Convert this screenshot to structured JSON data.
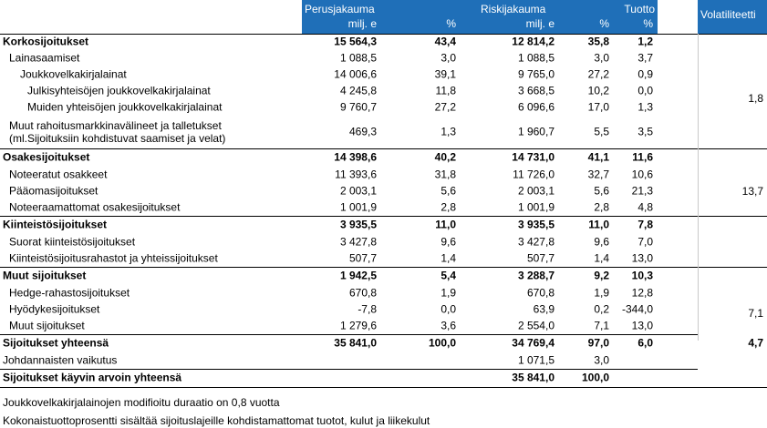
{
  "header": {
    "perus_title": "Perusjakauma",
    "perus_unit": "milj. e",
    "perus_pct": "%",
    "riski_title": "Riskijakauma",
    "riski_unit": "milj. e",
    "riski_pct": "%",
    "tuotto_title": "Tuotto",
    "tuotto_pct": "%",
    "volatiliteetti": "Volatiliteetti"
  },
  "rows": [
    {
      "label": "Korkosijoitukset",
      "bold": true,
      "p1": "15 564,3",
      "p2": "43,4",
      "r1": "12 814,2",
      "r2": "35,8",
      "t": "1,2"
    },
    {
      "label": "Lainasaamiset",
      "indent": 1,
      "p1": "1 088,5",
      "p2": "3,0",
      "r1": "1 088,5",
      "r2": "3,0",
      "t": "3,7"
    },
    {
      "label": "Joukkovelkakirjalainat",
      "indent": 2,
      "p1": "14 006,6",
      "p2": "39,1",
      "r1": "9 765,0",
      "r2": "27,2",
      "t": "0,9"
    },
    {
      "label": "Julkisyhteisöjen joukkovelkakirjalainat",
      "indent": 3,
      "p1": "4 245,8",
      "p2": "11,8",
      "r1": "3 668,5",
      "r2": "10,2",
      "t": "0,0"
    },
    {
      "label": "Muiden yhteisöjen joukkovelkakirjalainat",
      "indent": 3,
      "p1": "9 760,7",
      "p2": "27,2",
      "r1": "6 096,6",
      "r2": "17,0",
      "t": "1,3"
    },
    {
      "label": "Muut rahoitusmarkkinavälineet ja talletukset",
      "label2": "(ml.Sijoituksiin kohdistuvat saamiset ja velat)",
      "indent": 1,
      "p1": "469,3",
      "p2": "1,3",
      "r1": "1 960,7",
      "r2": "5,5",
      "t": "3,5"
    },
    {
      "label": "Osakesijoitukset",
      "bold": true,
      "p1": "14 398,6",
      "p2": "40,2",
      "r1": "14 731,0",
      "r2": "41,1",
      "t": "11,6"
    },
    {
      "label": "Noteeratut osakkeet",
      "indent": 1,
      "p1": "11 393,6",
      "p2": "31,8",
      "r1": "11 726,0",
      "r2": "32,7",
      "t": "10,6"
    },
    {
      "label": "Pääomasijoitukset",
      "indent": 1,
      "p1": "2 003,1",
      "p2": "5,6",
      "r1": "2 003,1",
      "r2": "5,6",
      "t": "21,3"
    },
    {
      "label": "Noteeraamattomat osakesijoitukset",
      "indent": 1,
      "p1": "1 001,9",
      "p2": "2,8",
      "r1": "1 001,9",
      "r2": "2,8",
      "t": "4,8"
    },
    {
      "label": "Kiinteistösijoitukset",
      "bold": true,
      "p1": "3 935,5",
      "p2": "11,0",
      "r1": "3 935,5",
      "r2": "11,0",
      "t": "7,8"
    },
    {
      "label": "Suorat kiinteistösijoitukset",
      "indent": 1,
      "p1": "3 427,8",
      "p2": "9,6",
      "r1": "3 427,8",
      "r2": "9,6",
      "t": "7,0"
    },
    {
      "label": "Kiinteistösijoitusrahastot ja yhteissijoitukset",
      "indent": 1,
      "p1": "507,7",
      "p2": "1,4",
      "r1": "507,7",
      "r2": "1,4",
      "t": "13,0"
    },
    {
      "label": "Muut sijoitukset",
      "bold": true,
      "p1": "1 942,5",
      "p2": "5,4",
      "r1": "3 288,7",
      "r2": "9,2",
      "t": "10,3"
    },
    {
      "label": "Hedge-rahastosijoitukset",
      "indent": 1,
      "p1": "670,8",
      "p2": "1,9",
      "r1": "670,8",
      "r2": "1,9",
      "t": "12,8"
    },
    {
      "label": "Hyödykesijoitukset",
      "indent": 1,
      "p1": "-7,8",
      "p2": "0,0",
      "r1": "63,9",
      "r2": "0,2",
      "t": "-344,0"
    },
    {
      "label": "Muut sijoitukset",
      "indent": 1,
      "p1": "1 279,6",
      "p2": "3,6",
      "r1": "2 554,0",
      "r2": "7,1",
      "t": "13,0"
    },
    {
      "label": "Sijoitukset yhteensä",
      "bold": true,
      "p1": "35 841,0",
      "p2": "100,0",
      "r1": "34 769,4",
      "r2": "97,0",
      "t": "6,0",
      "vol": "4,7"
    },
    {
      "label": "Johdannaisten vaikutus",
      "p1": "",
      "p2": "",
      "r1": "1 071,5",
      "r2": "3,0",
      "t": ""
    },
    {
      "label": "Sijoitukset käyvin arvoin yhteensä",
      "bold": true,
      "p1": "",
      "p2": "",
      "r1": "35 841,0",
      "r2": "100,0",
      "t": ""
    }
  ],
  "volatility_groups": [
    "1,8",
    "13,7",
    "7,1"
  ],
  "notes": [
    "Joukkovelkakirjalainojen modifioitu duraatio on 0,8 vuotta",
    "Kokonaistuottoprosentti sisältää sijoituslajeille kohdistamattomat tuotot, kulut ja liikekulut"
  ]
}
